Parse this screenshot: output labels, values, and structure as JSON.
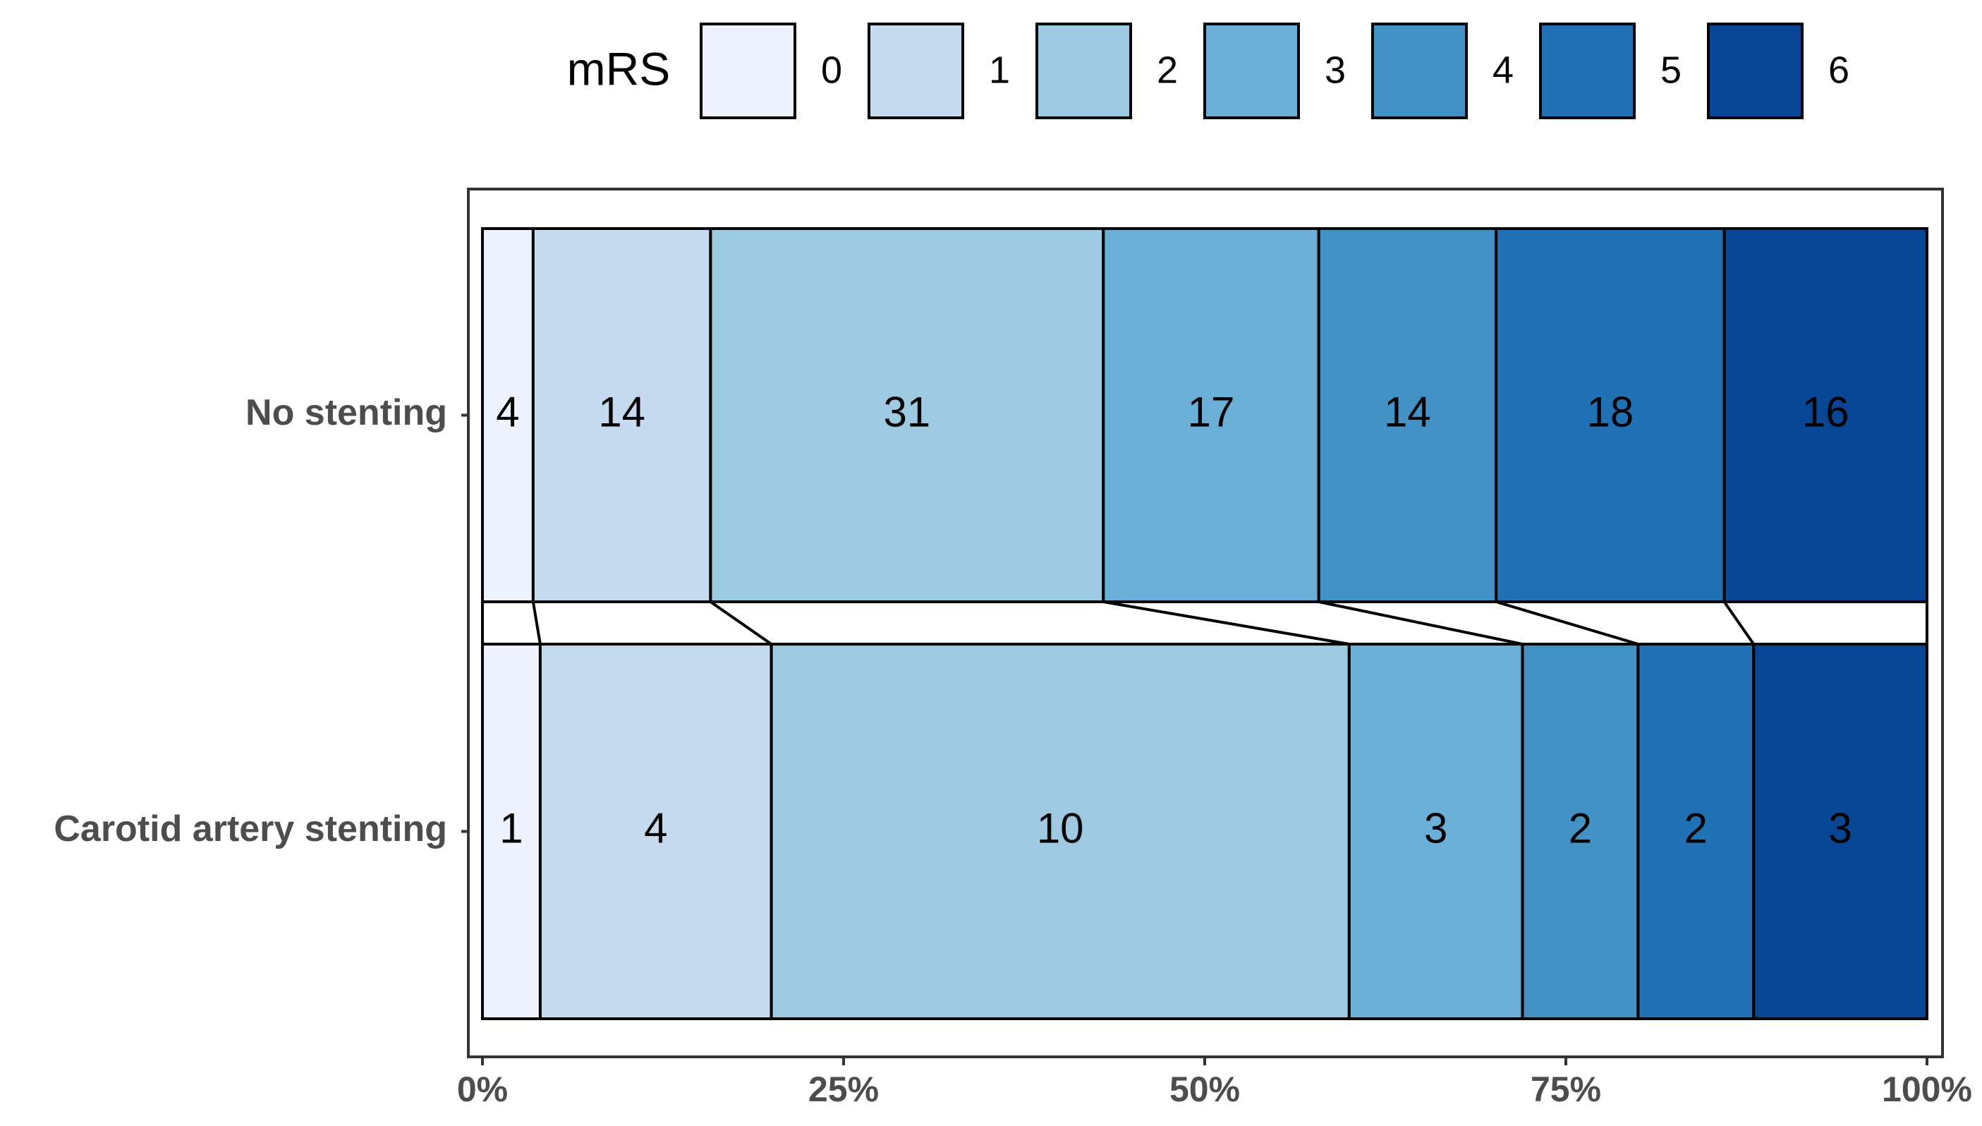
{
  "chart_data": {
    "type": "bar",
    "orientation": "horizontal",
    "normalize": true,
    "legend_title": "mRS",
    "categories": [
      "No stenting",
      "Carotid artery stenting"
    ],
    "series": [
      {
        "name": "0",
        "color": "#eff3ff",
        "values": [
          4,
          1
        ]
      },
      {
        "name": "1",
        "color": "#c6dbef",
        "values": [
          14,
          4
        ]
      },
      {
        "name": "2",
        "color": "#9ecae1",
        "values": [
          31,
          10
        ]
      },
      {
        "name": "3",
        "color": "#6baed6",
        "values": [
          17,
          3
        ]
      },
      {
        "name": "4",
        "color": "#4292c6",
        "values": [
          14,
          2
        ]
      },
      {
        "name": "5",
        "color": "#2171b5",
        "values": [
          18,
          2
        ]
      },
      {
        "name": "6",
        "color": "#084594",
        "values": [
          16,
          3
        ]
      }
    ],
    "xlim": [
      0,
      100
    ],
    "xticks": [
      {
        "value": 0,
        "label": "0%"
      },
      {
        "value": 25,
        "label": "25%"
      },
      {
        "value": 50,
        "label": "50%"
      },
      {
        "value": 75,
        "label": "75%"
      },
      {
        "value": 100,
        "label": "100%"
      }
    ],
    "legend_position": "top"
  }
}
